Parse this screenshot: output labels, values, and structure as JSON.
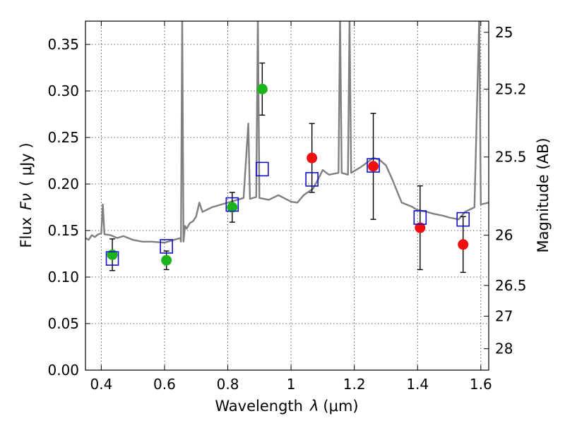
{
  "chart_data": {
    "type": "scatter",
    "title": "",
    "xlabel_text": "Wavelength",
    "xlabel_symbol": "λ",
    "xlabel_unit": "(μm)",
    "ylabel_text": "Flux",
    "ylabel_symbol": "Fν",
    "ylabel_unit": "( μJy )",
    "y2label": "Magnitude (AB)",
    "xlim": [
      0.35,
      1.625
    ],
    "ylim": [
      0.0,
      0.375
    ],
    "x_ticks": [
      0.4,
      0.6,
      0.8,
      1.0,
      1.2,
      1.4,
      1.6
    ],
    "x_tick_labels": [
      "0.4",
      "0.6",
      "0.8",
      "1",
      "1.2",
      "1.4",
      "1.6"
    ],
    "y_ticks": [
      0.0,
      0.05,
      0.1,
      0.15,
      0.2,
      0.25,
      0.3,
      0.35
    ],
    "y_tick_labels": [
      "0.00",
      "0.05",
      "0.10",
      "0.15",
      "0.20",
      "0.25",
      "0.30",
      "0.35"
    ],
    "y2_ticks": [
      {
        "label": "25",
        "flux": 0.363
      },
      {
        "label": "25.2",
        "flux": 0.302
      },
      {
        "label": "25.5",
        "flux": 0.229
      },
      {
        "label": "26",
        "flux": 0.145
      },
      {
        "label": "26.5",
        "flux": 0.091
      },
      {
        "label": "27",
        "flux": 0.058
      },
      {
        "label": "28",
        "flux": 0.023
      }
    ],
    "grid": true,
    "colors": {
      "spectrum": "#808080",
      "green": "#1db31d",
      "red": "#f01010",
      "model_box": "#1010c8",
      "errorbar": "#000000"
    },
    "spectrum": [
      [
        0.35,
        0.142
      ],
      [
        0.36,
        0.14
      ],
      [
        0.37,
        0.145
      ],
      [
        0.38,
        0.143
      ],
      [
        0.39,
        0.146
      ],
      [
        0.4,
        0.147
      ],
      [
        0.405,
        0.178
      ],
      [
        0.41,
        0.146
      ],
      [
        0.43,
        0.145
      ],
      [
        0.45,
        0.142
      ],
      [
        0.47,
        0.144
      ],
      [
        0.5,
        0.14
      ],
      [
        0.53,
        0.138
      ],
      [
        0.56,
        0.138
      ],
      [
        0.6,
        0.137
      ],
      [
        0.63,
        0.14
      ],
      [
        0.65,
        0.142
      ],
      [
        0.652,
        0.138
      ],
      [
        0.656,
        0.38
      ],
      [
        0.66,
        0.138
      ],
      [
        0.665,
        0.155
      ],
      [
        0.67,
        0.152
      ],
      [
        0.68,
        0.158
      ],
      [
        0.69,
        0.16
      ],
      [
        0.7,
        0.165
      ],
      [
        0.71,
        0.18
      ],
      [
        0.72,
        0.17
      ],
      [
        0.75,
        0.175
      ],
      [
        0.78,
        0.178
      ],
      [
        0.8,
        0.18
      ],
      [
        0.82,
        0.182
      ],
      [
        0.85,
        0.185
      ],
      [
        0.865,
        0.265
      ],
      [
        0.87,
        0.184
      ],
      [
        0.89,
        0.186
      ],
      [
        0.895,
        0.38
      ],
      [
        0.9,
        0.185
      ],
      [
        0.93,
        0.183
      ],
      [
        0.96,
        0.188
      ],
      [
        1.0,
        0.181
      ],
      [
        1.02,
        0.18
      ],
      [
        1.04,
        0.188
      ],
      [
        1.07,
        0.195
      ],
      [
        1.09,
        0.208
      ],
      [
        1.1,
        0.215
      ],
      [
        1.12,
        0.21
      ],
      [
        1.15,
        0.212
      ],
      [
        1.155,
        0.38
      ],
      [
        1.16,
        0.212
      ],
      [
        1.18,
        0.21
      ],
      [
        1.185,
        0.38
      ],
      [
        1.19,
        0.212
      ],
      [
        1.22,
        0.218
      ],
      [
        1.26,
        0.228
      ],
      [
        1.28,
        0.226
      ],
      [
        1.3,
        0.22
      ],
      [
        1.32,
        0.205
      ],
      [
        1.35,
        0.18
      ],
      [
        1.38,
        0.176
      ],
      [
        1.4,
        0.172
      ],
      [
        1.43,
        0.17
      ],
      [
        1.45,
        0.168
      ],
      [
        1.48,
        0.166
      ],
      [
        1.5,
        0.164
      ],
      [
        1.53,
        0.162
      ],
      [
        1.55,
        0.17
      ],
      [
        1.58,
        0.175
      ],
      [
        1.595,
        0.38
      ],
      [
        1.6,
        0.178
      ],
      [
        1.625,
        0.18
      ]
    ],
    "green_points": [
      {
        "x": 0.435,
        "y": 0.124,
        "err": 0.017
      },
      {
        "x": 0.606,
        "y": 0.118,
        "err": 0.01
      },
      {
        "x": 0.814,
        "y": 0.175,
        "err": 0.016
      },
      {
        "x": 0.909,
        "y": 0.302,
        "err": 0.028
      }
    ],
    "red_points": [
      {
        "x": 1.066,
        "y": 0.228,
        "err": 0.037
      },
      {
        "x": 1.26,
        "y": 0.219,
        "err": 0.057
      },
      {
        "x": 1.408,
        "y": 0.153,
        "err": 0.045
      },
      {
        "x": 1.544,
        "y": 0.135,
        "err": 0.03
      }
    ],
    "model_points": [
      {
        "x": 0.435,
        "y": 0.12
      },
      {
        "x": 0.606,
        "y": 0.133
      },
      {
        "x": 0.814,
        "y": 0.178
      },
      {
        "x": 0.909,
        "y": 0.216
      },
      {
        "x": 1.066,
        "y": 0.205
      },
      {
        "x": 1.26,
        "y": 0.22
      },
      {
        "x": 1.408,
        "y": 0.164
      },
      {
        "x": 1.544,
        "y": 0.162
      }
    ]
  }
}
